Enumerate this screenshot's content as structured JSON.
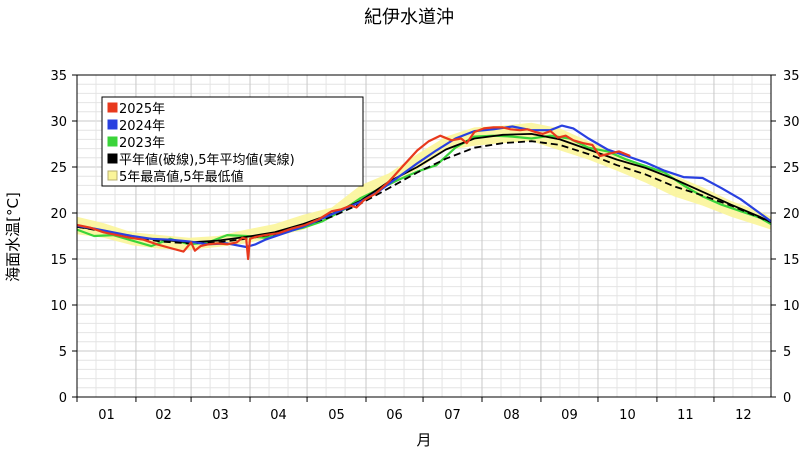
{
  "chart_data": {
    "type": "line",
    "title": "紀伊水道沖",
    "xlabel": "月",
    "ylabel": "海面水温[°C]",
    "ylim": [
      0,
      35
    ],
    "yticks": [
      0,
      5,
      10,
      15,
      20,
      25,
      30,
      35
    ],
    "x_unit": "day of year",
    "xlim": [
      1,
      366
    ],
    "month_ticks": [
      "01",
      "02",
      "03",
      "04",
      "05",
      "06",
      "07",
      "08",
      "09",
      "10",
      "11",
      "12"
    ],
    "grid": true,
    "legend_position": "top-left",
    "legend": [
      "2025年",
      "2024年",
      "2023年",
      "平年値(破線),5年平均値(実線)",
      "5年最高値,5年最低値"
    ],
    "colors": {
      "y2025": "#e8391d",
      "y2024": "#2940e0",
      "y2023": "#3ad43a",
      "normal": "#000000",
      "avg5": "#000000",
      "range5": "#fbf59a"
    },
    "range_band": {
      "name": "5年最高値,5年最低値",
      "x": [
        1,
        15,
        30,
        45,
        60,
        75,
        90,
        105,
        120,
        135,
        150,
        165,
        180,
        195,
        210,
        225,
        240,
        255,
        270,
        285,
        300,
        315,
        330,
        345,
        360,
        366
      ],
      "high": [
        19.6,
        18.9,
        17.9,
        17.6,
        17.3,
        17.5,
        18.2,
        18.8,
        19.8,
        20.6,
        23.0,
        24.3,
        26.4,
        28.3,
        29.3,
        29.5,
        29.8,
        29.2,
        27.8,
        26.5,
        25.0,
        24.1,
        22.8,
        21.3,
        20.2,
        19.6
      ],
      "low": [
        17.7,
        17.3,
        16.5,
        16.1,
        16.0,
        16.3,
        16.7,
        17.4,
        18.2,
        19.5,
        21.3,
        23.2,
        24.7,
        26.8,
        27.3,
        27.6,
        27.8,
        26.8,
        25.8,
        24.6,
        23.3,
        21.8,
        20.8,
        19.6,
        18.6,
        18.2
      ]
    },
    "series": [
      {
        "name": "2025年",
        "x": [
          1,
          8,
          15,
          22,
          29,
          36,
          43,
          50,
          57,
          61,
          63,
          66,
          70,
          75,
          80,
          85,
          88,
          90,
          91,
          92,
          95,
          100,
          107,
          114,
          121,
          128,
          135,
          140,
          145,
          148,
          152,
          158,
          165,
          172,
          180,
          186,
          192,
          198,
          203,
          206,
          210,
          215,
          220,
          225,
          229,
          234,
          238,
          242,
          246,
          250,
          254,
          258,
          262,
          267,
          272,
          276,
          282,
          286,
          292
        ],
        "y": [
          18.7,
          18.4,
          17.9,
          17.6,
          17.3,
          17.1,
          16.6,
          16.2,
          15.8,
          16.8,
          15.9,
          16.4,
          16.6,
          16.7,
          16.6,
          16.8,
          17.3,
          17.2,
          15.0,
          17.2,
          17.4,
          17.6,
          17.8,
          18.3,
          18.7,
          19.3,
          20.2,
          20.4,
          20.8,
          20.6,
          21.4,
          22.1,
          23.4,
          25.0,
          26.8,
          27.8,
          28.4,
          27.9,
          28.1,
          27.6,
          28.8,
          29.2,
          29.3,
          29.3,
          29.1,
          29.0,
          29.1,
          28.8,
          28.6,
          28.9,
          28.2,
          28.4,
          27.9,
          27.6,
          27.4,
          26.2,
          26.5,
          26.7,
          26.2
        ]
      },
      {
        "name": "2024年",
        "x": [
          1,
          10,
          20,
          30,
          40,
          50,
          60,
          70,
          80,
          90,
          95,
          100,
          110,
          120,
          130,
          140,
          150,
          160,
          170,
          180,
          190,
          200,
          210,
          220,
          230,
          240,
          250,
          256,
          262,
          270,
          280,
          290,
          300,
          310,
          320,
          330,
          340,
          350,
          360,
          366
        ],
        "y": [
          18.6,
          18.3,
          17.9,
          17.5,
          17.2,
          17.1,
          16.9,
          16.6,
          16.7,
          16.3,
          16.6,
          17.1,
          17.8,
          18.5,
          19.4,
          20.3,
          21.2,
          22.4,
          23.9,
          25.4,
          26.8,
          28.1,
          28.9,
          29.1,
          29.4,
          29.0,
          29.0,
          29.5,
          29.2,
          28.1,
          26.9,
          26.2,
          25.5,
          24.6,
          23.9,
          23.8,
          22.7,
          21.5,
          20.0,
          19.1
        ]
      },
      {
        "name": "2023年",
        "x": [
          1,
          10,
          20,
          30,
          40,
          50,
          60,
          70,
          80,
          90,
          100,
          110,
          120,
          130,
          140,
          150,
          160,
          170,
          180,
          190,
          200,
          210,
          220,
          230,
          240,
          250,
          260,
          270,
          280,
          290,
          300,
          310,
          320,
          330,
          340,
          350,
          360,
          366
        ],
        "y": [
          18.2,
          17.5,
          17.6,
          17.0,
          16.4,
          17.2,
          16.6,
          16.8,
          17.6,
          17.5,
          17.3,
          17.9,
          18.4,
          19.1,
          20.2,
          21.6,
          22.6,
          23.6,
          24.5,
          25.2,
          27.1,
          28.3,
          28.4,
          28.3,
          28.1,
          28.4,
          28.1,
          27.1,
          26.7,
          25.8,
          25.1,
          24.4,
          23.0,
          21.8,
          20.9,
          20.2,
          19.5,
          18.8
        ]
      },
      {
        "name": "平年値",
        "dash": true,
        "x": [
          1,
          15,
          30,
          45,
          60,
          75,
          90,
          105,
          120,
          135,
          150,
          165,
          180,
          195,
          210,
          225,
          240,
          255,
          270,
          285,
          300,
          315,
          330,
          345,
          360,
          366
        ],
        "y": [
          18.5,
          18.0,
          17.4,
          16.9,
          16.7,
          16.8,
          17.2,
          17.7,
          18.6,
          19.6,
          21.0,
          22.7,
          24.4,
          25.9,
          27.1,
          27.6,
          27.8,
          27.4,
          26.4,
          25.2,
          24.2,
          22.9,
          21.9,
          20.8,
          19.5,
          19.0
        ]
      },
      {
        "name": "5年平均値",
        "dash": false,
        "x": [
          1,
          15,
          30,
          45,
          60,
          75,
          90,
          105,
          120,
          135,
          150,
          165,
          180,
          195,
          210,
          225,
          240,
          255,
          270,
          285,
          300,
          315,
          330,
          345,
          360,
          366
        ],
        "y": [
          18.5,
          18.1,
          17.4,
          17.1,
          16.8,
          17.0,
          17.4,
          17.9,
          18.8,
          19.9,
          21.3,
          23.4,
          25.0,
          26.9,
          28.1,
          28.5,
          28.6,
          28.0,
          26.9,
          25.8,
          24.9,
          23.7,
          22.3,
          20.9,
          19.6,
          19.0
        ]
      }
    ]
  }
}
